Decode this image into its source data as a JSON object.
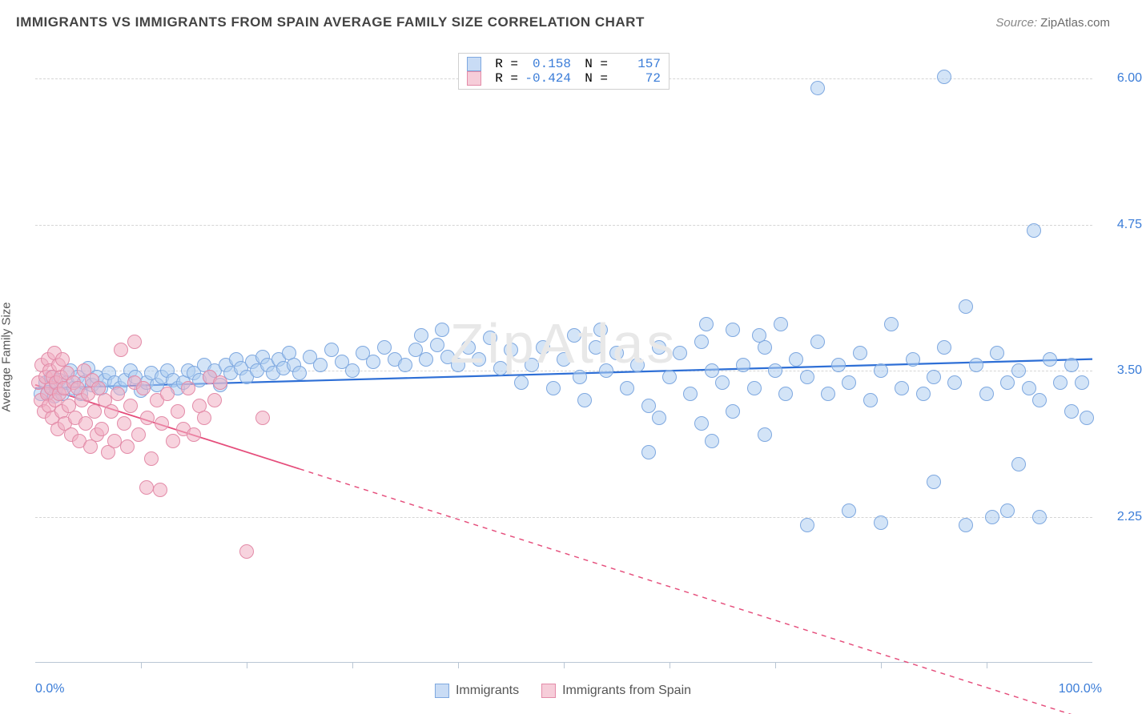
{
  "title": "IMMIGRANTS VS IMMIGRANTS FROM SPAIN AVERAGE FAMILY SIZE CORRELATION CHART",
  "source_label": "Source:",
  "source_value": "ZipAtlas.com",
  "watermark": "ZipAtlas",
  "y_axis_title": "Average Family Size",
  "x_axis": {
    "min": 0.0,
    "max": 100.0,
    "label_left": "0.0%",
    "label_right": "100.0%",
    "tick_step": 10.0
  },
  "y_axis": {
    "min": 1.0,
    "max": 6.25,
    "ticks": [
      2.25,
      3.5,
      4.75,
      6.0
    ],
    "tick_labels": [
      "2.25",
      "3.50",
      "4.75",
      "6.00"
    ],
    "label_color": "#3b7dd8"
  },
  "grid_color": "#d5d5d5",
  "background_color": "#ffffff",
  "legend_top": {
    "r_label": "R =",
    "n_label": "N =",
    "rows": [
      {
        "swatch_fill": "#c9dcf5",
        "swatch_stroke": "#7ea8e0",
        "r": "0.158",
        "n": "157"
      },
      {
        "swatch_fill": "#f6cdd9",
        "swatch_stroke": "#e38ba8",
        "r": "-0.424",
        "n": "72"
      }
    ]
  },
  "legend_bottom": {
    "items": [
      {
        "swatch_fill": "#c9dcf5",
        "swatch_stroke": "#7ea8e0",
        "label": "Immigrants"
      },
      {
        "swatch_fill": "#f6cdd9",
        "swatch_stroke": "#e38ba8",
        "label": "Immigrants from Spain"
      }
    ]
  },
  "series": [
    {
      "name": "immigrants",
      "marker_fill": "rgba(174,205,240,0.55)",
      "marker_stroke": "#7ea8e0",
      "marker_radius": 9,
      "trend": {
        "stroke": "#2e6fd6",
        "width": 2.2,
        "y_at_xmin": 3.35,
        "y_at_xmax": 3.6,
        "solid_until_x": 100.0
      },
      "points": [
        [
          0.5,
          3.3
        ],
        [
          1.0,
          3.4
        ],
        [
          1.2,
          3.32
        ],
        [
          1.5,
          3.45
        ],
        [
          1.8,
          3.28
        ],
        [
          2.0,
          3.35
        ],
        [
          2.3,
          3.42
        ],
        [
          2.6,
          3.3
        ],
        [
          3.0,
          3.4
        ],
        [
          3.3,
          3.5
        ],
        [
          3.6,
          3.35
        ],
        [
          4.0,
          3.45
        ],
        [
          4.3,
          3.3
        ],
        [
          4.6,
          3.4
        ],
        [
          5.0,
          3.52
        ],
        [
          5.4,
          3.38
        ],
        [
          5.8,
          3.45
        ],
        [
          6.2,
          3.35
        ],
        [
          6.6,
          3.42
        ],
        [
          7.0,
          3.48
        ],
        [
          7.5,
          3.4
        ],
        [
          8.0,
          3.35
        ],
        [
          8.5,
          3.42
        ],
        [
          9.0,
          3.5
        ],
        [
          9.5,
          3.45
        ],
        [
          10.0,
          3.33
        ],
        [
          10.5,
          3.4
        ],
        [
          11.0,
          3.48
        ],
        [
          11.5,
          3.38
        ],
        [
          12.0,
          3.45
        ],
        [
          12.5,
          3.5
        ],
        [
          13.0,
          3.42
        ],
        [
          13.5,
          3.35
        ],
        [
          14.0,
          3.4
        ],
        [
          14.5,
          3.5
        ],
        [
          15.0,
          3.48
        ],
        [
          15.5,
          3.42
        ],
        [
          16.0,
          3.55
        ],
        [
          16.5,
          3.45
        ],
        [
          17.0,
          3.5
        ],
        [
          17.5,
          3.38
        ],
        [
          18.0,
          3.55
        ],
        [
          18.5,
          3.48
        ],
        [
          19.0,
          3.6
        ],
        [
          19.5,
          3.52
        ],
        [
          20.0,
          3.45
        ],
        [
          20.5,
          3.58
        ],
        [
          21.0,
          3.5
        ],
        [
          21.5,
          3.62
        ],
        [
          22.0,
          3.55
        ],
        [
          22.5,
          3.48
        ],
        [
          23.0,
          3.6
        ],
        [
          23.5,
          3.52
        ],
        [
          24.0,
          3.65
        ],
        [
          24.5,
          3.55
        ],
        [
          25.0,
          3.48
        ],
        [
          26.0,
          3.62
        ],
        [
          27.0,
          3.55
        ],
        [
          28.0,
          3.68
        ],
        [
          29.0,
          3.58
        ],
        [
          30.0,
          3.5
        ],
        [
          31.0,
          3.65
        ],
        [
          32.0,
          3.58
        ],
        [
          33.0,
          3.7
        ],
        [
          34.0,
          3.6
        ],
        [
          35.0,
          3.55
        ],
        [
          36.0,
          3.68
        ],
        [
          36.5,
          3.8
        ],
        [
          37.0,
          3.6
        ],
        [
          38.0,
          3.72
        ],
        [
          38.5,
          3.85
        ],
        [
          39.0,
          3.62
        ],
        [
          40.0,
          3.55
        ],
        [
          41.0,
          3.7
        ],
        [
          42.0,
          3.6
        ],
        [
          43.0,
          3.78
        ],
        [
          44.0,
          3.52
        ],
        [
          45.0,
          3.68
        ],
        [
          46.0,
          3.4
        ],
        [
          47.0,
          3.55
        ],
        [
          48.0,
          3.7
        ],
        [
          49.0,
          3.35
        ],
        [
          50.0,
          3.6
        ],
        [
          51.0,
          3.8
        ],
        [
          51.5,
          3.45
        ],
        [
          52.0,
          3.25
        ],
        [
          53.0,
          3.7
        ],
        [
          53.5,
          3.85
        ],
        [
          54.0,
          3.5
        ],
        [
          55.0,
          3.65
        ],
        [
          56.0,
          3.35
        ],
        [
          57.0,
          3.55
        ],
        [
          58.0,
          3.2
        ],
        [
          58.0,
          2.8
        ],
        [
          59.0,
          3.7
        ],
        [
          59.0,
          3.1
        ],
        [
          60.0,
          3.45
        ],
        [
          61.0,
          3.65
        ],
        [
          62.0,
          3.3
        ],
        [
          63.0,
          3.75
        ],
        [
          63.0,
          3.05
        ],
        [
          64.0,
          3.5
        ],
        [
          64.0,
          2.9
        ],
        [
          65.0,
          3.4
        ],
        [
          66.0,
          3.85
        ],
        [
          66.0,
          3.15
        ],
        [
          67.0,
          3.55
        ],
        [
          68.0,
          3.35
        ],
        [
          69.0,
          3.7
        ],
        [
          69.0,
          2.95
        ],
        [
          70.0,
          3.5
        ],
        [
          70.5,
          3.9
        ],
        [
          71.0,
          3.3
        ],
        [
          72.0,
          3.6
        ],
        [
          73.0,
          2.18
        ],
        [
          73.0,
          3.45
        ],
        [
          74.0,
          3.75
        ],
        [
          75.0,
          3.3
        ],
        [
          76.0,
          3.55
        ],
        [
          77.0,
          3.4
        ],
        [
          77.0,
          2.3
        ],
        [
          78.0,
          3.65
        ],
        [
          79.0,
          3.25
        ],
        [
          80.0,
          3.5
        ],
        [
          80.0,
          2.2
        ],
        [
          81.0,
          3.9
        ],
        [
          82.0,
          3.35
        ],
        [
          83.0,
          3.6
        ],
        [
          84.0,
          3.3
        ],
        [
          85.0,
          3.45
        ],
        [
          85.0,
          2.55
        ],
        [
          86.0,
          3.7
        ],
        [
          87.0,
          3.4
        ],
        [
          88.0,
          4.05
        ],
        [
          88.0,
          2.18
        ],
        [
          89.0,
          3.55
        ],
        [
          90.0,
          3.3
        ],
        [
          90.5,
          2.25
        ],
        [
          91.0,
          3.65
        ],
        [
          92.0,
          3.4
        ],
        [
          92.0,
          2.3
        ],
        [
          93.0,
          2.7
        ],
        [
          93.0,
          3.5
        ],
        [
          94.0,
          3.35
        ],
        [
          94.5,
          4.7
        ],
        [
          95.0,
          3.25
        ],
        [
          95.0,
          2.25
        ],
        [
          96.0,
          3.6
        ],
        [
          97.0,
          3.4
        ],
        [
          74.0,
          5.92
        ],
        [
          86.0,
          6.02
        ],
        [
          98.0,
          3.15
        ],
        [
          98.0,
          3.55
        ],
        [
          99.0,
          3.4
        ],
        [
          99.5,
          3.1
        ],
        [
          63.5,
          3.9
        ],
        [
          68.5,
          3.8
        ]
      ]
    },
    {
      "name": "immigrants_spain",
      "marker_fill": "rgba(240,175,195,0.55)",
      "marker_stroke": "#e38ba8",
      "marker_radius": 9,
      "trend": {
        "stroke": "#e54d7b",
        "width": 1.8,
        "y_at_xmin": 3.38,
        "y_at_xmax": 0.5,
        "solid_until_x": 25.0
      },
      "points": [
        [
          0.3,
          3.4
        ],
        [
          0.5,
          3.25
        ],
        [
          0.6,
          3.55
        ],
        [
          0.8,
          3.15
        ],
        [
          1.0,
          3.45
        ],
        [
          1.1,
          3.3
        ],
        [
          1.2,
          3.6
        ],
        [
          1.3,
          3.2
        ],
        [
          1.4,
          3.5
        ],
        [
          1.5,
          3.35
        ],
        [
          1.6,
          3.1
        ],
        [
          1.7,
          3.45
        ],
        [
          1.8,
          3.65
        ],
        [
          1.9,
          3.25
        ],
        [
          2.0,
          3.4
        ],
        [
          2.1,
          3.0
        ],
        [
          2.2,
          3.55
        ],
        [
          2.3,
          3.3
        ],
        [
          2.4,
          3.45
        ],
        [
          2.5,
          3.15
        ],
        [
          2.6,
          3.6
        ],
        [
          2.7,
          3.35
        ],
        [
          2.8,
          3.05
        ],
        [
          3.0,
          3.48
        ],
        [
          3.2,
          3.2
        ],
        [
          3.4,
          2.95
        ],
        [
          3.6,
          3.4
        ],
        [
          3.8,
          3.1
        ],
        [
          4.0,
          3.35
        ],
        [
          4.2,
          2.9
        ],
        [
          4.4,
          3.25
        ],
        [
          4.6,
          3.5
        ],
        [
          4.8,
          3.05
        ],
        [
          5.0,
          3.3
        ],
        [
          5.2,
          2.85
        ],
        [
          5.4,
          3.42
        ],
        [
          5.6,
          3.15
        ],
        [
          5.8,
          2.95
        ],
        [
          6.0,
          3.35
        ],
        [
          6.3,
          3.0
        ],
        [
          6.6,
          3.25
        ],
        [
          6.9,
          2.8
        ],
        [
          7.2,
          3.15
        ],
        [
          7.5,
          2.9
        ],
        [
          7.8,
          3.3
        ],
        [
          8.1,
          3.68
        ],
        [
          8.4,
          3.05
        ],
        [
          8.7,
          2.85
        ],
        [
          9.0,
          3.2
        ],
        [
          9.4,
          3.4
        ],
        [
          9.4,
          3.75
        ],
        [
          9.8,
          2.95
        ],
        [
          10.2,
          3.35
        ],
        [
          10.6,
          3.1
        ],
        [
          11.0,
          2.75
        ],
        [
          10.5,
          2.5
        ],
        [
          11.5,
          3.25
        ],
        [
          11.8,
          2.48
        ],
        [
          12.0,
          3.05
        ],
        [
          12.5,
          3.3
        ],
        [
          13.0,
          2.9
        ],
        [
          13.5,
          3.15
        ],
        [
          14.0,
          3.0
        ],
        [
          14.5,
          3.35
        ],
        [
          15.0,
          2.95
        ],
        [
          15.5,
          3.2
        ],
        [
          16.0,
          3.1
        ],
        [
          16.5,
          3.45
        ],
        [
          17.0,
          3.25
        ],
        [
          17.5,
          3.4
        ],
        [
          20.0,
          1.95
        ],
        [
          21.5,
          3.1
        ]
      ]
    }
  ]
}
